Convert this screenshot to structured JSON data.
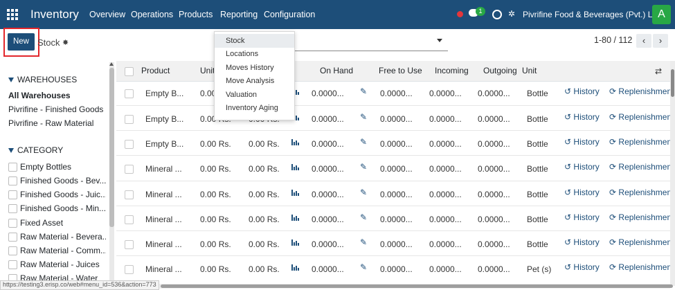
{
  "navbar": {
    "app_name": "Inventory",
    "menu": [
      "Overview",
      "Operations",
      "Products",
      "Reporting",
      "Configuration"
    ],
    "chat_badge": "1",
    "company": "Pivrifine Food & Beverages (Pvt.) Ltd.",
    "avatar": "A",
    "icons": [
      "apps-grid-icon",
      "activity-dot-icon",
      "chat-icon",
      "clock-icon",
      "settings-tools-icon"
    ]
  },
  "control": {
    "new_label": "New",
    "title": "Stock",
    "pager": "1-80 / 112",
    "prev": "‹",
    "next": "›"
  },
  "reporting_menu": [
    "Stock",
    "Locations",
    "Moves History",
    "Move Analysis",
    "Valuation",
    "Inventory Aging"
  ],
  "sidebar": {
    "warehouses_title": "WAREHOUSES",
    "warehouses": [
      "All Warehouses",
      "Pivrifine - Finished Goods",
      "Pivrifine - Raw Material"
    ],
    "category_title": "CATEGORY",
    "categories": [
      "Empty Bottles",
      "Finished Goods - Bev...",
      "Finished Goods - Juic...",
      "Finished Goods - Min...",
      "Fixed Asset",
      "Raw Material - Bevera...",
      "Raw Material - Comm...",
      "Raw Material - Juices",
      "Raw Material - Water"
    ]
  },
  "table": {
    "headers": {
      "product": "Product",
      "unit_cost": "Unit",
      "on_hand": "On Hand",
      "free": "Free to Use",
      "incoming": "Incoming",
      "outgoing": "Outgoing",
      "unit": "Unit"
    },
    "history_label": "History",
    "replenish_label": "Replenishmen",
    "rows": [
      {
        "product": "Empty B...",
        "unit_cost": "0.00",
        "value": "",
        "on_hand": "0.0000...",
        "free": "0.0000...",
        "incoming": "0.0000...",
        "outgoing": "0.0000...",
        "unit": "Bottle"
      },
      {
        "product": "Empty B...",
        "unit_cost": "0.00 Rs.",
        "value": "0.00 Rs.",
        "on_hand": "0.0000...",
        "free": "0.0000...",
        "incoming": "0.0000...",
        "outgoing": "0.0000...",
        "unit": "Bottle"
      },
      {
        "product": "Empty B...",
        "unit_cost": "0.00 Rs.",
        "value": "0.00 Rs.",
        "on_hand": "0.0000...",
        "free": "0.0000...",
        "incoming": "0.0000...",
        "outgoing": "0.0000...",
        "unit": "Bottle"
      },
      {
        "product": "Mineral ...",
        "unit_cost": "0.00 Rs.",
        "value": "0.00 Rs.",
        "on_hand": "0.0000...",
        "free": "0.0000...",
        "incoming": "0.0000...",
        "outgoing": "0.0000...",
        "unit": "Bottle"
      },
      {
        "product": "Mineral ...",
        "unit_cost": "0.00 Rs.",
        "value": "0.00 Rs.",
        "on_hand": "0.0000...",
        "free": "0.0000...",
        "incoming": "0.0000...",
        "outgoing": "0.0000...",
        "unit": "Bottle"
      },
      {
        "product": "Mineral ...",
        "unit_cost": "0.00 Rs.",
        "value": "0.00 Rs.",
        "on_hand": "0.0000...",
        "free": "0.0000...",
        "incoming": "0.0000...",
        "outgoing": "0.0000...",
        "unit": "Bottle"
      },
      {
        "product": "Mineral ...",
        "unit_cost": "0.00 Rs.",
        "value": "0.00 Rs.",
        "on_hand": "0.0000...",
        "free": "0.0000...",
        "incoming": "0.0000...",
        "outgoing": "0.0000...",
        "unit": "Bottle"
      },
      {
        "product": "Mineral ...",
        "unit_cost": "0.00 Rs.",
        "value": "0.00 Rs.",
        "on_hand": "0.0000...",
        "free": "0.0000...",
        "incoming": "0.0000...",
        "outgoing": "0.0000...",
        "unit": "Pet (s)"
      }
    ]
  },
  "status_url": "https://testing3.erisp.co/web#menu_id=536&action=773",
  "colors": {
    "brand": "#1d4e79",
    "avatar": "#28a745",
    "highlight": "#e3262b"
  }
}
